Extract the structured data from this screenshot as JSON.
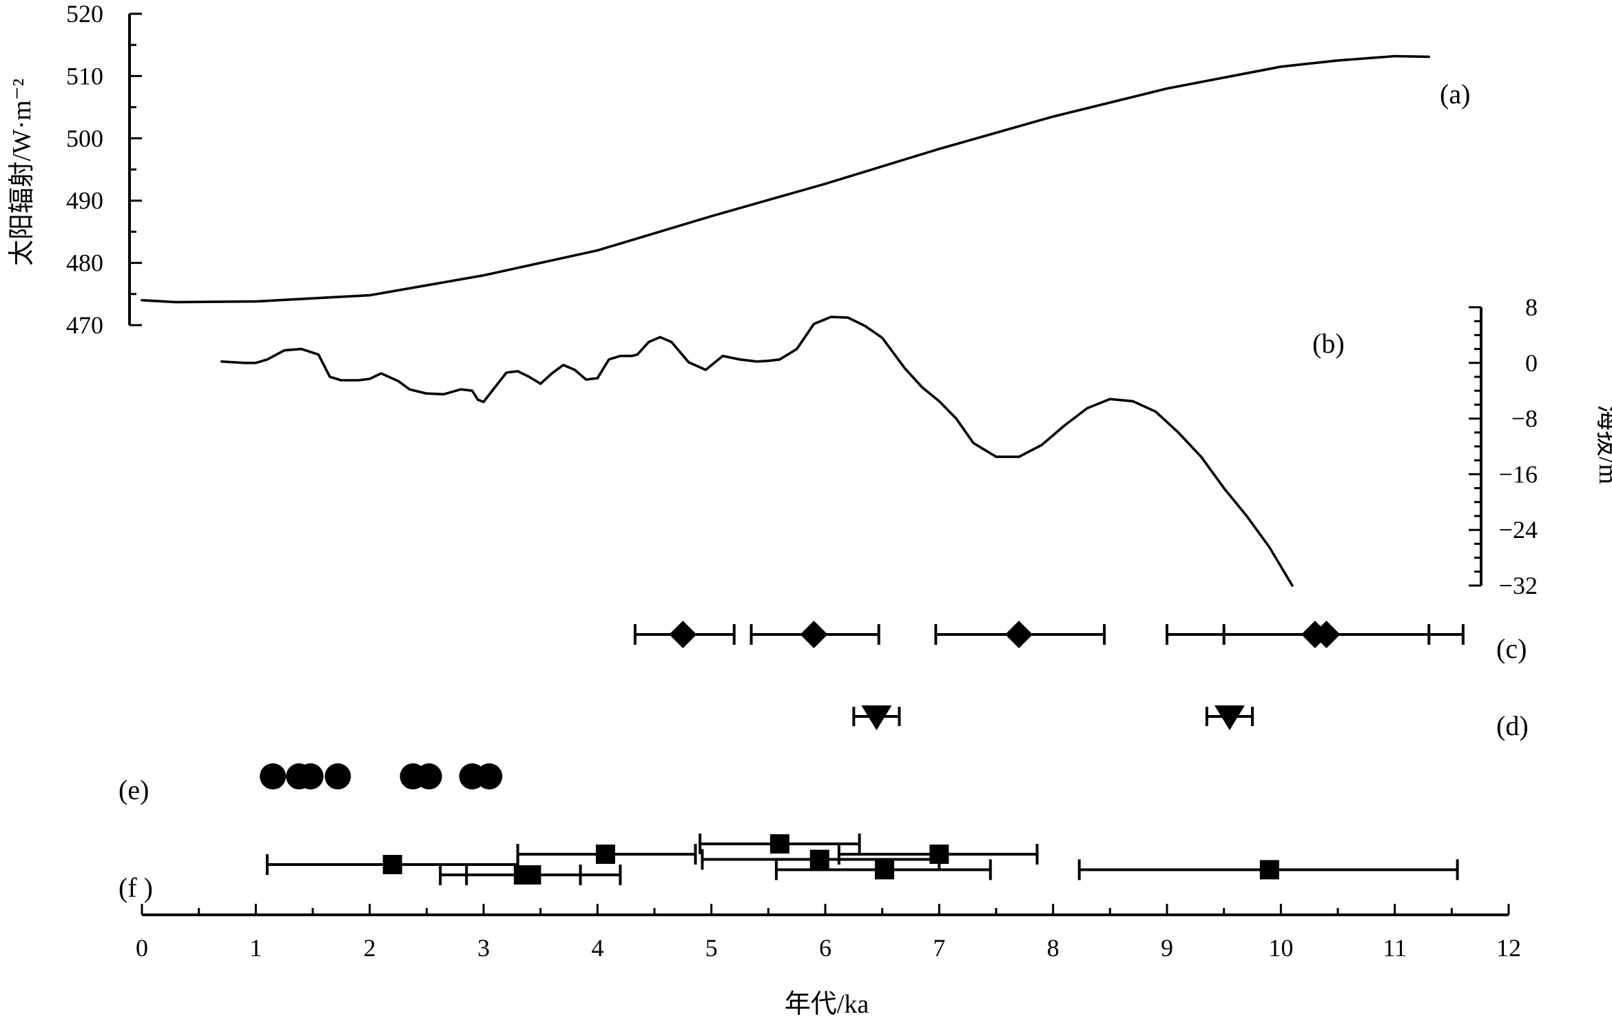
{
  "figure": {
    "x_axis": {
      "label": "年代/ka",
      "ticks": [
        "0",
        "1",
        "2",
        "3",
        "4",
        "5",
        "6",
        "7",
        "8",
        "9",
        "10",
        "11",
        "12"
      ]
    },
    "panel_labels": {
      "a": "(a)",
      "b": "(b)",
      "c": "(c)",
      "d": "(d)",
      "e": "(e)",
      "f": "(f )"
    }
  },
  "chart_data": [
    {
      "panel": "(a)",
      "type": "line",
      "xlabel": "年代/ka",
      "ylabel": "太阳辐射/W·m⁻²",
      "xlim": [
        0,
        12
      ],
      "ylim": [
        470,
        520
      ],
      "yticks": [
        "470",
        "480",
        "490",
        "500",
        "510",
        "520"
      ],
      "x": [
        0,
        0.3,
        1.0,
        2.0,
        3.0,
        4.0,
        5.0,
        6.0,
        7.0,
        8.0,
        9.0,
        10.0,
        10.5,
        11.0,
        11.3
      ],
      "y": [
        474.0,
        473.7,
        473.8,
        474.8,
        478.0,
        482.0,
        487.5,
        492.7,
        498.3,
        503.5,
        508.0,
        511.5,
        512.5,
        513.2,
        513.1
      ]
    },
    {
      "panel": "(b)",
      "type": "line",
      "ylabel": "海拔/m",
      "xlim": [
        0,
        12
      ],
      "ylim": [
        -32,
        8
      ],
      "yticks": [
        "8",
        "0",
        "−8",
        "−16",
        "−24",
        "−32"
      ],
      "x": [
        0.7,
        0.9,
        1.0,
        1.1,
        1.25,
        1.4,
        1.55,
        1.65,
        1.75,
        1.9,
        2.0,
        2.1,
        2.25,
        2.35,
        2.5,
        2.65,
        2.8,
        2.9,
        2.95,
        3.0,
        3.1,
        3.2,
        3.3,
        3.4,
        3.5,
        3.6,
        3.7,
        3.8,
        3.9,
        4.0,
        4.1,
        4.2,
        4.3,
        4.35,
        4.45,
        4.55,
        4.65,
        4.8,
        4.95,
        5.1,
        5.25,
        5.4,
        5.5,
        5.6,
        5.75,
        5.9,
        6.05,
        6.2,
        6.35,
        6.5,
        6.7,
        6.85,
        7.0,
        7.15,
        7.3,
        7.5,
        7.7,
        7.9,
        8.1,
        8.3,
        8.5,
        8.7,
        8.9,
        9.1,
        9.3,
        9.5,
        9.7,
        9.9,
        10.1
      ],
      "y": [
        0.2,
        0.0,
        0.0,
        0.5,
        1.8,
        2.0,
        1.2,
        -2.0,
        -2.5,
        -2.5,
        -2.3,
        -1.5,
        -2.6,
        -3.8,
        -4.4,
        -4.5,
        -3.8,
        -4.0,
        -5.3,
        -5.6,
        -3.5,
        -1.4,
        -1.2,
        -2.0,
        -3.0,
        -1.5,
        -0.3,
        -1.0,
        -2.4,
        -2.2,
        0.5,
        1.0,
        1.0,
        1.2,
        3.0,
        3.7,
        3.0,
        0.1,
        -1.0,
        1.0,
        0.5,
        0.2,
        0.3,
        0.5,
        2.0,
        5.6,
        6.6,
        6.5,
        5.3,
        3.6,
        -0.8,
        -3.5,
        -5.5,
        -8.0,
        -11.5,
        -13.5,
        -13.5,
        -11.8,
        -9.0,
        -6.5,
        -5.2,
        -5.5,
        -7.0,
        -10.0,
        -13.5,
        -18.0,
        -22.0,
        -26.5,
        -32.0
      ]
    },
    {
      "panel": "(c)",
      "type": "scatter",
      "marker": "diamond",
      "x": [
        4.75,
        5.9,
        7.7,
        10.3,
        10.4
      ],
      "xerr_low": [
        4.33,
        5.35,
        6.97,
        9.0,
        9.5
      ],
      "xerr_high": [
        5.2,
        6.47,
        8.45,
        11.3,
        11.6
      ]
    },
    {
      "panel": "(d)",
      "type": "scatter",
      "marker": "triangle-down",
      "x": [
        6.45,
        9.55
      ],
      "xerr_low": [
        6.25,
        9.35
      ],
      "xerr_high": [
        6.65,
        9.75
      ]
    },
    {
      "panel": "(e)",
      "type": "scatter",
      "marker": "circle",
      "x": [
        1.15,
        1.38,
        1.48,
        1.72,
        2.38,
        2.52,
        2.9,
        3.05
      ]
    },
    {
      "panel": "(f )",
      "type": "scatter",
      "marker": "square",
      "x": [
        2.2,
        3.35,
        3.42,
        4.07,
        5.6,
        5.95,
        6.52,
        7.0,
        9.9
      ],
      "xerr_low": [
        1.1,
        2.62,
        2.85,
        3.3,
        4.9,
        4.92,
        5.57,
        6.12,
        8.23
      ],
      "xerr_high": [
        3.3,
        4.2,
        3.85,
        4.86,
        6.3,
        7.0,
        7.45,
        7.86,
        11.55
      ],
      "row": [
        1,
        2,
        2,
        0,
        -1,
        0.5,
        1.5,
        0,
        1.5
      ]
    }
  ]
}
